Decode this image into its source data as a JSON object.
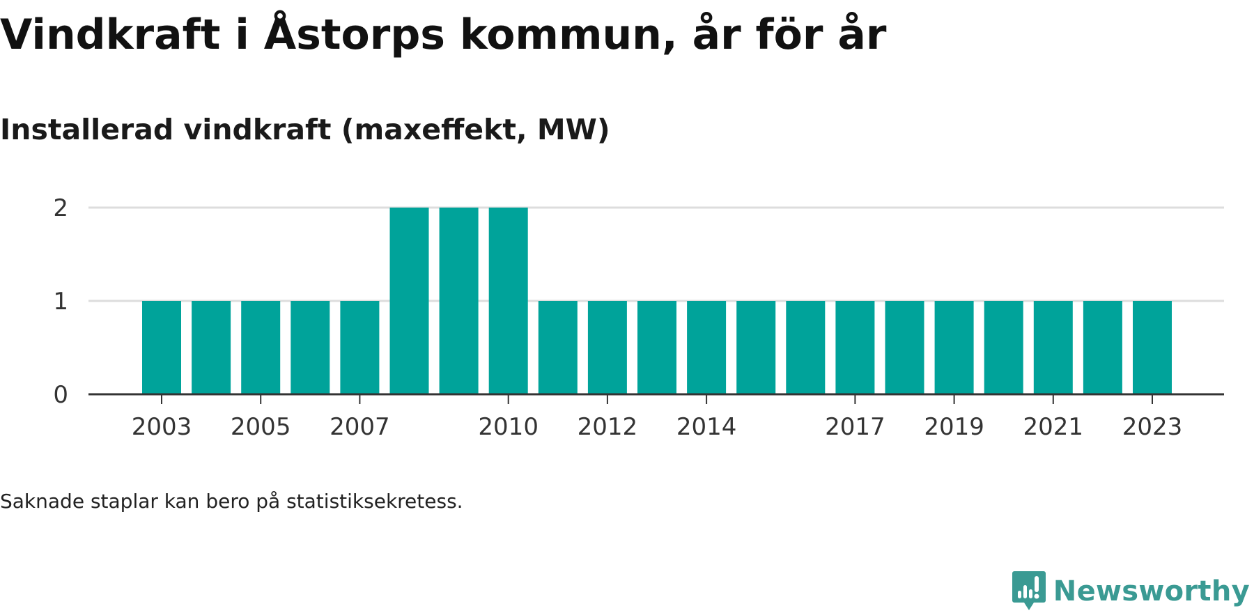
{
  "header": {
    "title": "Vindkraft i Åstorps kommun, år för år",
    "subtitle": "Installerad vindkraft (maxeffekt, MW)"
  },
  "footer": {
    "note": "Saknade staplar kan bero på statistiksekretess.",
    "brand": "Newsworthy"
  },
  "colors": {
    "bar": "#00a39a",
    "grid": "#dddddd",
    "axis": "#333333",
    "brand": "#3a9a93"
  },
  "chart_data": {
    "type": "bar",
    "categories": [
      "2003",
      "2004",
      "2005",
      "2006",
      "2007",
      "2008",
      "2009",
      "2010",
      "2011",
      "2012",
      "2013",
      "2014",
      "2015",
      "2016",
      "2017",
      "2018",
      "2019",
      "2020",
      "2021",
      "2022",
      "2023"
    ],
    "values": [
      1,
      1,
      1,
      1,
      1,
      2,
      2,
      2,
      1,
      1,
      1,
      1,
      1,
      1,
      1,
      1,
      1,
      1,
      1,
      1,
      1
    ],
    "x_tick_labels": [
      "2003",
      "2005",
      "2007",
      "2010",
      "2012",
      "2014",
      "2017",
      "2019",
      "2021",
      "2023"
    ],
    "y_ticks": [
      0,
      1,
      2
    ],
    "ylim": [
      0,
      2
    ],
    "xlabel": "",
    "ylabel": "",
    "grid": true
  }
}
